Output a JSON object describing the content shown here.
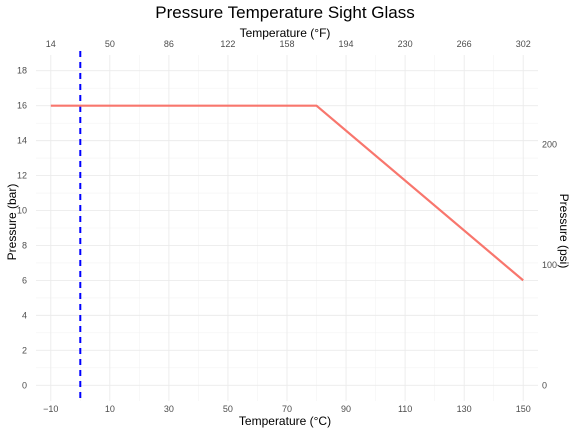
{
  "chart_data": {
    "type": "line",
    "title": "Pressure Temperature Sight Glass",
    "x_bottom": {
      "label": "Temperature (°C)",
      "range": [
        -15,
        155
      ],
      "ticks": [
        -10,
        10,
        30,
        50,
        70,
        90,
        110,
        130,
        150
      ],
      "tick_labels": [
        "−10",
        "10",
        "30",
        "50",
        "70",
        "90",
        "110",
        "130",
        "150"
      ]
    },
    "x_top": {
      "label": "Temperature (°F)",
      "ticks": [
        14,
        50,
        86,
        122,
        158,
        194,
        230,
        266,
        302
      ],
      "tick_labels": [
        "14",
        "50",
        "86",
        "122",
        "158",
        "194",
        "230",
        "266",
        "302"
      ]
    },
    "y_left": {
      "label": "Pressure (bar)",
      "range": [
        -0.9,
        18.9
      ],
      "ticks": [
        0,
        2,
        4,
        6,
        8,
        10,
        12,
        14,
        16,
        18
      ],
      "tick_labels": [
        "0",
        "2",
        "4",
        "6",
        "8",
        "10",
        "12",
        "14",
        "16",
        "18"
      ]
    },
    "y_right": {
      "label": "Pressure (psi)",
      "ticks": [
        0,
        100,
        200
      ],
      "tick_labels": [
        "0",
        "100",
        "200"
      ]
    },
    "series": [
      {
        "color": "#f8766d",
        "x": [
          -10,
          80,
          150
        ],
        "y": [
          16,
          16,
          6
        ]
      }
    ],
    "reference_lines": [
      {
        "axis": "x",
        "value": 0,
        "color": "#0000ff",
        "style": "dashed"
      }
    ],
    "grid": true
  }
}
